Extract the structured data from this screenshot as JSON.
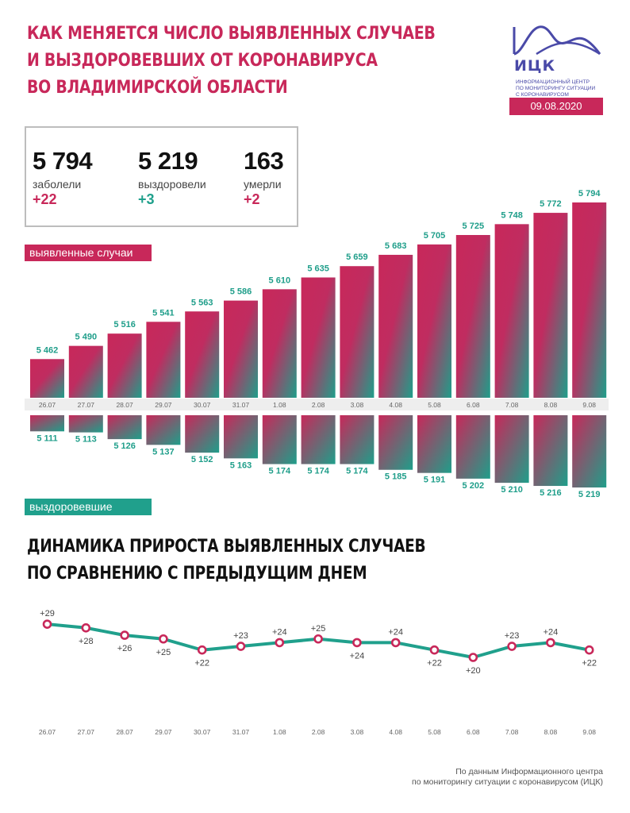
{
  "title": {
    "line1": "КАК МЕНЯЕТСЯ ЧИСЛО ВЫЯВЛЕННЫХ СЛУЧАЕВ",
    "line2": "И ВЫЗДОРОВЕВШИХ ОТ КОРОНАВИРУСА",
    "line3": "ВО ВЛАДИМИРСКОЙ ОБЛАСТИ"
  },
  "logo": {
    "name": "ИЦК",
    "subtitle_line1": "ИНФОРМАЦИОННЫЙ ЦЕНТР",
    "subtitle_line2": "ПО МОНИТОРИНГУ СИТУАЦИИ",
    "subtitle_line3": "С КОРОНАВИРУСОМ",
    "date": "09.08.2020"
  },
  "stats": {
    "infected": {
      "value": "5 794",
      "label": "заболели",
      "delta": "+22"
    },
    "recovered": {
      "value": "5 219",
      "label": "выздоровели",
      "delta": "+3"
    },
    "deaths": {
      "value": "163",
      "label": "умерли",
      "delta": "+2"
    }
  },
  "legend": {
    "cases": "выявленные случаи",
    "recovered": "выздоровевшие"
  },
  "subtitle": {
    "line1": "ДИНАМИКА ПРИРОСТА ВЫЯВЛЕННЫХ СЛУЧАЕВ",
    "line2": "ПО СРАВНЕНИЮ С ПРЕДЫДУЩИМ ДНЕМ"
  },
  "footer": {
    "line1": "По данным Информационного центра",
    "line2": "по мониторингу ситуации с коронавирусом (ИЦК)"
  },
  "colors": {
    "accent": "#c8285a",
    "teal": "#20a08c",
    "logo": "#4a4aa8"
  },
  "chart_data": [
    {
      "type": "bar",
      "categories": [
        "26.07",
        "27.07",
        "28.07",
        "29.07",
        "30.07",
        "31.07",
        "1.08",
        "2.08",
        "3.08",
        "4.08",
        "5.08",
        "6.08",
        "7.08",
        "8.08",
        "9.08"
      ],
      "series": [
        {
          "name": "выявленные случаи",
          "values": [
            5462,
            5490,
            5516,
            5541,
            5563,
            5586,
            5610,
            5635,
            5659,
            5683,
            5705,
            5725,
            5748,
            5772,
            5794
          ]
        }
      ],
      "labels": [
        "5 462",
        "5 490",
        "5 516",
        "5 541",
        "5 563",
        "5 586",
        "5 610",
        "5 635",
        "5 659",
        "5 683",
        "5 705",
        "5 725",
        "5 748",
        "5 772",
        "5 794"
      ]
    },
    {
      "type": "bar",
      "categories": [
        "26.07",
        "27.07",
        "28.07",
        "29.07",
        "30.07",
        "31.07",
        "1.08",
        "2.08",
        "3.08",
        "4.08",
        "5.08",
        "6.08",
        "7.08",
        "8.08",
        "9.08"
      ],
      "series": [
        {
          "name": "выздоровевшие",
          "values": [
            5111,
            5113,
            5126,
            5137,
            5152,
            5163,
            5174,
            5174,
            5174,
            5185,
            5191,
            5202,
            5210,
            5216,
            5219
          ]
        }
      ],
      "labels": [
        "5 111",
        "5 113",
        "5 126",
        "5 137",
        "5 152",
        "5 163",
        "5 174",
        "5 174",
        "5 174",
        "5 185",
        "5 191",
        "5 202",
        "5 210",
        "5 216",
        "5 219"
      ]
    },
    {
      "type": "line",
      "title": "ДИНАМИКА ПРИРОСТА ВЫЯВЛЕННЫХ СЛУЧАЕВ ПО СРАВНЕНИЮ С ПРЕДЫДУЩИМ ДНЕМ",
      "x": [
        "26.07",
        "27.07",
        "28.07",
        "29.07",
        "30.07",
        "31.07",
        "1.08",
        "2.08",
        "3.08",
        "4.08",
        "5.08",
        "6.08",
        "7.08",
        "8.08",
        "9.08"
      ],
      "values": [
        29,
        28,
        26,
        25,
        22,
        23,
        24,
        25,
        24,
        24,
        22,
        20,
        23,
        24,
        22
      ],
      "labels": [
        "+29",
        "+28",
        "+26",
        "+25",
        "+22",
        "+23",
        "+24",
        "+25",
        "+24",
        "+24",
        "+22",
        "+20",
        "+23",
        "+24",
        "+22"
      ]
    }
  ]
}
